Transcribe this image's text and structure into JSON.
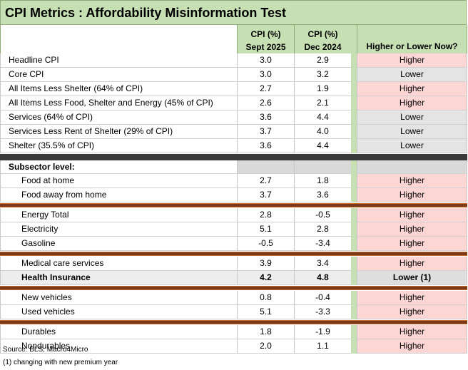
{
  "title": "CPI Metrics : Affordability Misinformation Test",
  "header": {
    "col1_line1": "CPI (%)",
    "col1_line2": "Sept 2025",
    "col2_line1": "CPI (%)",
    "col2_line2": "Dec 2024",
    "col3": "Higher or Lower Now?"
  },
  "headline_rows": [
    {
      "label": "Headline CPI",
      "sept": "3.0",
      "dec": "2.9",
      "change": "Higher"
    },
    {
      "label": "Core CPI",
      "sept": "3.0",
      "dec": "3.2",
      "change": "Lower"
    },
    {
      "label": "All Items Less Shelter (64% of CPI)",
      "sept": "2.7",
      "dec": "1.9",
      "change": "Higher"
    },
    {
      "label": "All Items Less Food, Shelter and Energy (45% of CPI)",
      "sept": "2.6",
      "dec": "2.1",
      "change": "Higher"
    },
    {
      "label": "Services (64%  of CPI)",
      "sept": "3.6",
      "dec": "4.4",
      "change": "Lower"
    },
    {
      "label": "Services Less Rent of Shelter (29% of CPI)",
      "sept": "3.7",
      "dec": "4.0",
      "change": "Lower"
    },
    {
      "label": "Shelter (35.5% of CPI)",
      "sept": "3.6",
      "dec": "4.4",
      "change": "Lower"
    }
  ],
  "subsector_label": "Subsector level:",
  "groups": [
    [
      {
        "label": "Food at home",
        "sept": "2.7",
        "dec": "1.8",
        "change": "Higher"
      },
      {
        "label": "Food away from home",
        "sept": "3.7",
        "dec": "3.6",
        "change": "Higher"
      }
    ],
    [
      {
        "label": "Energy Total",
        "sept": "2.8",
        "dec": "-0.5",
        "change": "Higher"
      },
      {
        "label": "Electricity",
        "sept": "5.1",
        "dec": "2.8",
        "change": "Higher"
      },
      {
        "label": "Gasoline",
        "sept": "-0.5",
        "dec": "-3.4",
        "change": "Higher"
      }
    ],
    [
      {
        "label": "Medical care services",
        "sept": "3.9",
        "dec": "3.4",
        "change": "Higher"
      },
      {
        "label": "Health Insurance",
        "sept": "4.2",
        "dec": "4.8",
        "change": "Lower (1)",
        "bold": true
      }
    ],
    [
      {
        "label": "New vehicles",
        "sept": "0.8",
        "dec": "-0.4",
        "change": "Higher"
      },
      {
        "label": "Used vehicles",
        "sept": "5.1",
        "dec": "-3.3",
        "change": "Higher"
      }
    ],
    [
      {
        "label": "Durables",
        "sept": "1.8",
        "dec": "-1.9",
        "change": "Higher"
      },
      {
        "label": "Nondurables",
        "sept": "2.0",
        "dec": "1.1",
        "change": "Higher"
      }
    ]
  ],
  "footer": {
    "source": "Source: BLS, Macro4Micro",
    "note": "(1) changing with new premium year"
  }
}
